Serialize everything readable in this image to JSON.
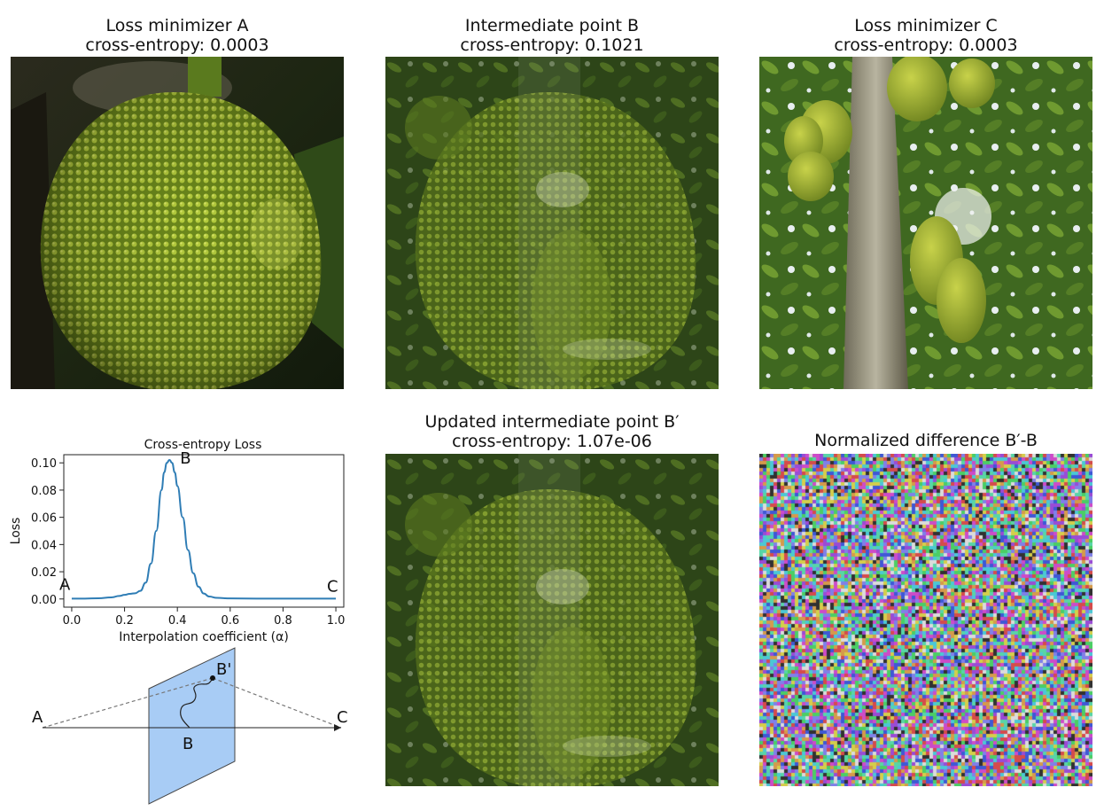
{
  "panels": {
    "a": {
      "title": "Loss minimizer A",
      "subtitle": "cross-entropy: 0.0003"
    },
    "b": {
      "title": "Intermediate point B",
      "subtitle": "cross-entropy: 0.1021"
    },
    "c": {
      "title": "Loss minimizer C",
      "subtitle": "cross-entropy: 0.0003"
    },
    "bprime": {
      "title": "Updated intermediate point B′",
      "subtitle": "cross-entropy: 1.07e-06"
    },
    "diff": {
      "title": "Normalized difference  B′-B"
    }
  },
  "chart_data": {
    "type": "line",
    "title": "Cross-entropy Loss",
    "xlabel": "Interpolation coefficient (α)",
    "ylabel": "Loss",
    "xlim": [
      -0.03,
      1.03
    ],
    "ylim": [
      -0.006,
      0.106
    ],
    "xticks": [
      0.0,
      0.2,
      0.4,
      0.6,
      0.8,
      1.0
    ],
    "xtick_labels": [
      "0.0",
      "0.2",
      "0.4",
      "0.6",
      "0.8",
      "1.0"
    ],
    "yticks": [
      0.0,
      0.02,
      0.04,
      0.06,
      0.08,
      0.1
    ],
    "ytick_labels": [
      "0.00",
      "0.02",
      "0.04",
      "0.06",
      "0.08",
      "0.10"
    ],
    "grid": false,
    "series": [
      {
        "color": "#2f7db5",
        "x": [
          0.0,
          0.05,
          0.1,
          0.15,
          0.18,
          0.2,
          0.22,
          0.24,
          0.26,
          0.28,
          0.3,
          0.32,
          0.34,
          0.35,
          0.36,
          0.37,
          0.38,
          0.39,
          0.4,
          0.42,
          0.44,
          0.46,
          0.48,
          0.5,
          0.52,
          0.55,
          0.6,
          0.7,
          0.8,
          0.9,
          1.0
        ],
        "y": [
          0.0003,
          0.0003,
          0.0005,
          0.0012,
          0.0022,
          0.003,
          0.0038,
          0.0042,
          0.006,
          0.012,
          0.026,
          0.05,
          0.08,
          0.093,
          0.1,
          0.1021,
          0.1,
          0.093,
          0.083,
          0.06,
          0.036,
          0.019,
          0.009,
          0.004,
          0.0018,
          0.0008,
          0.0004,
          0.0003,
          0.0003,
          0.0003,
          0.0003
        ]
      }
    ],
    "annotations": [
      {
        "text": "A",
        "x": 0.0,
        "y": 0.0003
      },
      {
        "text": "B",
        "x": 0.37,
        "y": 0.1021
      },
      {
        "text": "C",
        "x": 1.0,
        "y": 0.0003
      }
    ]
  },
  "diagram": {
    "label_a": "A",
    "label_b": "B",
    "label_bprime": "B'",
    "label_c": "C",
    "plane_color": "#a8ccf5"
  }
}
